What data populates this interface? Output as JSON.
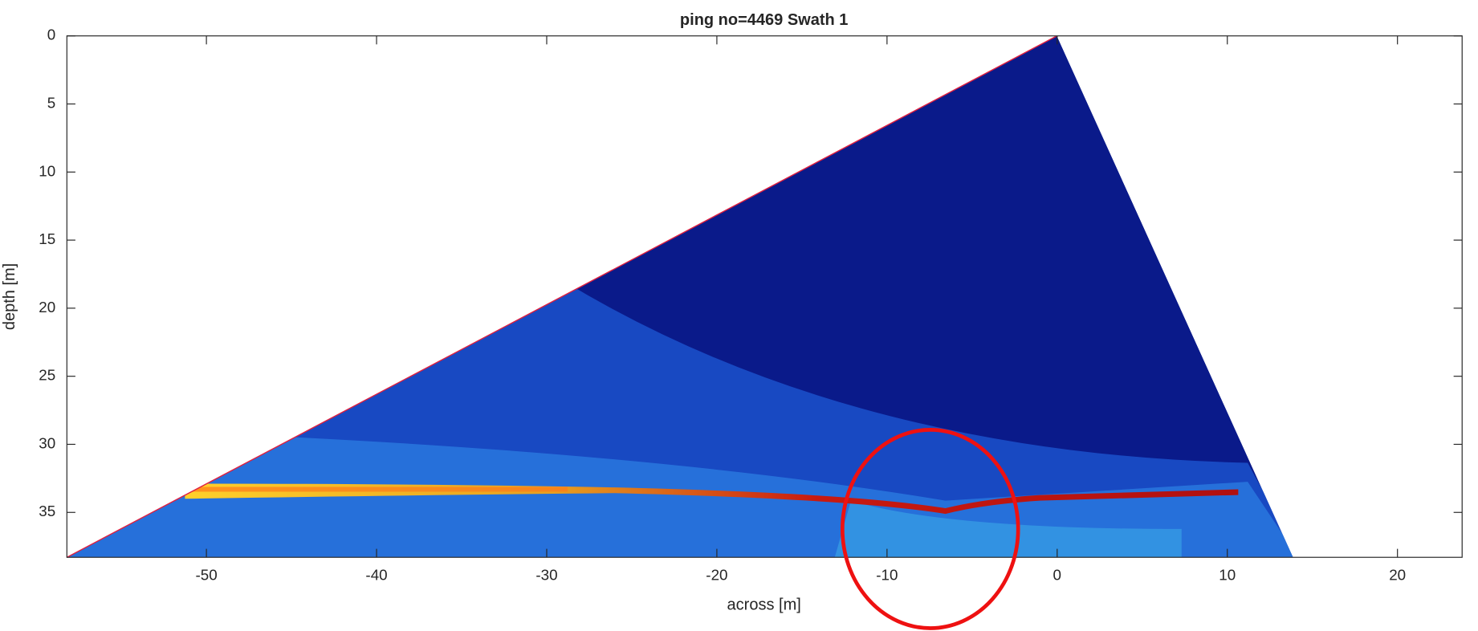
{
  "chart_data": {
    "type": "image",
    "title": "ping no=4469 Swath 1",
    "x_label": "across [m]",
    "y_label": "depth [m]",
    "xlim": [
      -58.2,
      23.8
    ],
    "ylim": [
      0,
      38.3
    ],
    "y_reversed": true,
    "xticks": [
      -50,
      -40,
      -30,
      -20,
      -10,
      0,
      10,
      20
    ],
    "yticks": [
      0,
      5,
      10,
      15,
      20,
      25,
      30,
      35
    ]
  }
}
